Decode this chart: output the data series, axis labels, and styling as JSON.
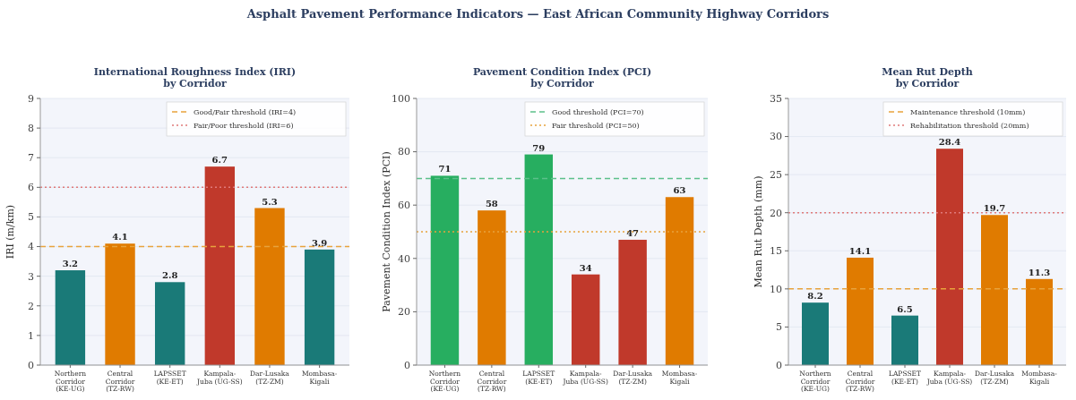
{
  "chart_data": [
    {
      "type": "bar",
      "title": "International Roughness Index (IRI)\nby Corridor",
      "ylabel": "IRI (m/km)",
      "annotations": [
        "Asphalt Pavement Performance Indicators — East African Community Highway Corridors"
      ],
      "categories": [
        "Northern\nCorridor\n(KE-UG)",
        "Central\nCorridor\n(TZ-RW)",
        "LAPSSET\n(KE-ET)",
        "Kampala-\nJuba (UG-SS)",
        "Dar-Lusaka\n(TZ-ZM)",
        "Mombasa-\nKigali"
      ],
      "values": [
        3.2,
        4.1,
        2.8,
        6.7,
        5.3,
        3.9
      ],
      "colors": [
        "#1a7a78",
        "#e07b00",
        "#1a7a78",
        "#c0392b",
        "#e07b00",
        "#1a7a78"
      ],
      "ylim": [
        0,
        9
      ],
      "yticks": [
        0,
        1,
        2,
        3,
        4,
        5,
        6,
        7,
        8,
        9
      ],
      "grid": "y",
      "data_labels": true,
      "legend": "top right",
      "ref_lines": [
        {
          "axis": "y",
          "value": 4,
          "label": "Good/Fair threshold (IRI=4)",
          "color": "#e8a33d",
          "line_style": "dashed"
        },
        {
          "axis": "y",
          "value": 6,
          "label": "Fair/Poor threshold (IRI=6)",
          "color": "#e07a7a",
          "line_style": "dotted"
        }
      ]
    },
    {
      "type": "bar",
      "title": "Pavement Condition Index (PCI)\nby Corridor",
      "ylabel": "Pavement Condition Index (PCI)",
      "categories": [
        "Northern\nCorridor\n(KE-UG)",
        "Central\nCorridor\n(TZ-RW)",
        "LAPSSET\n(KE-ET)",
        "Kampala-\nJuba (UG-SS)",
        "Dar-Lusaka\n(TZ-ZM)",
        "Mombasa-\nKigali"
      ],
      "values": [
        71,
        58,
        79,
        34,
        47,
        63
      ],
      "colors": [
        "#27ae60",
        "#e07b00",
        "#27ae60",
        "#c0392b",
        "#c0392b",
        "#e07b00"
      ],
      "ylim": [
        0,
        100
      ],
      "yticks": [
        0,
        20,
        40,
        60,
        80,
        100
      ],
      "grid": "y",
      "data_labels": true,
      "legend": "top right",
      "ref_lines": [
        {
          "axis": "y",
          "value": 70,
          "label": "Good threshold (PCI=70)",
          "color": "#5cc08a",
          "line_style": "dashed"
        },
        {
          "axis": "y",
          "value": 50,
          "label": "Fair threshold (PCI=50)",
          "color": "#e8a33d",
          "line_style": "dotted"
        }
      ]
    },
    {
      "type": "bar",
      "title": "Mean Rut Depth\nby Corridor",
      "ylabel": "Mean Rut Depth (mm)",
      "categories": [
        "Northern\nCorridor\n(KE-UG)",
        "Central\nCorridor\n(TZ-RW)",
        "LAPSSET\n(KE-ET)",
        "Kampala-\nJuba (UG-SS)",
        "Dar-Lusaka\n(TZ-ZM)",
        "Mombasa-\nKigali"
      ],
      "values": [
        8.2,
        14.1,
        6.5,
        28.4,
        19.7,
        11.3
      ],
      "colors": [
        "#1a7a78",
        "#e07b00",
        "#1a7a78",
        "#c0392b",
        "#e07b00",
        "#e07b00"
      ],
      "ylim": [
        0,
        35
      ],
      "yticks": [
        0,
        5,
        10,
        15,
        20,
        25,
        30,
        35
      ],
      "grid": "y",
      "data_labels": true,
      "legend": "top right",
      "ref_lines": [
        {
          "axis": "y",
          "value": 10,
          "label": "Maintenance threshold (10mm)",
          "color": "#e8a33d",
          "line_style": "dashed"
        },
        {
          "axis": "y",
          "value": 20,
          "label": "Rehabilitation threshold (20mm)",
          "color": "#e07a7a",
          "line_style": "dotted"
        }
      ]
    }
  ]
}
